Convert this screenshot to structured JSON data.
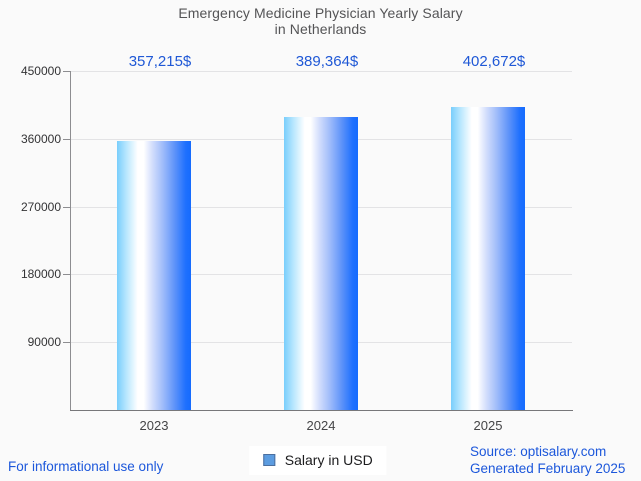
{
  "header": {
    "title_line1": "Emergency Medicine Physician Yearly Salary",
    "title_line2": "in Netherlands"
  },
  "chart_data": {
    "type": "bar",
    "title": "Emergency Medicine Physician Yearly Salary in Netherlands",
    "categories": [
      "2023",
      "2024",
      "2025"
    ],
    "series": [
      {
        "name": "Salary in USD",
        "values": [
          357215,
          389364,
          402672
        ]
      }
    ],
    "value_labels": [
      "357,215$",
      "389,364$",
      "402,672$"
    ],
    "xlabel": "",
    "ylabel": "",
    "ylim": [
      0,
      450000
    ],
    "yticks": [
      90000,
      180000,
      270000,
      360000,
      450000
    ],
    "ytick_labels": [
      "90000",
      "180000",
      "270000",
      "360000",
      "450000"
    ],
    "grid": true,
    "legend_position": "bottom",
    "colors": {
      "bar_gradient_left": "#79cefc",
      "bar_gradient_mid": "#ffffff",
      "bar_gradient_right": "#156bfe",
      "value_label": "#1f58d6",
      "legend_marker": "#5c9ce0",
      "gridline": "#e3e3e5",
      "background": "#fafafa"
    }
  },
  "legend": {
    "label": "Salary in USD"
  },
  "footer": {
    "left": "For informational use only",
    "right_line1": "Source: optisalary.com",
    "right_line2": "Generated February 2025",
    "text_color": "#1c57db"
  }
}
